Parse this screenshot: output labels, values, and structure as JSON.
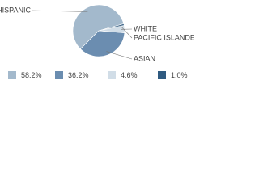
{
  "chart_data": {
    "type": "pie",
    "categories": [
      "HISPANIC",
      "ASIAN",
      "WHITE",
      "PACIFIC ISLANDER"
    ],
    "values": [
      58.2,
      36.2,
      4.6,
      1.0
    ],
    "value_labels": [
      "58.2%",
      "36.2%",
      "4.6%",
      "1.0%"
    ],
    "colors": [
      "#a3b9cc",
      "#6b8db0",
      "#d1dde7",
      "#2f5a80"
    ]
  }
}
